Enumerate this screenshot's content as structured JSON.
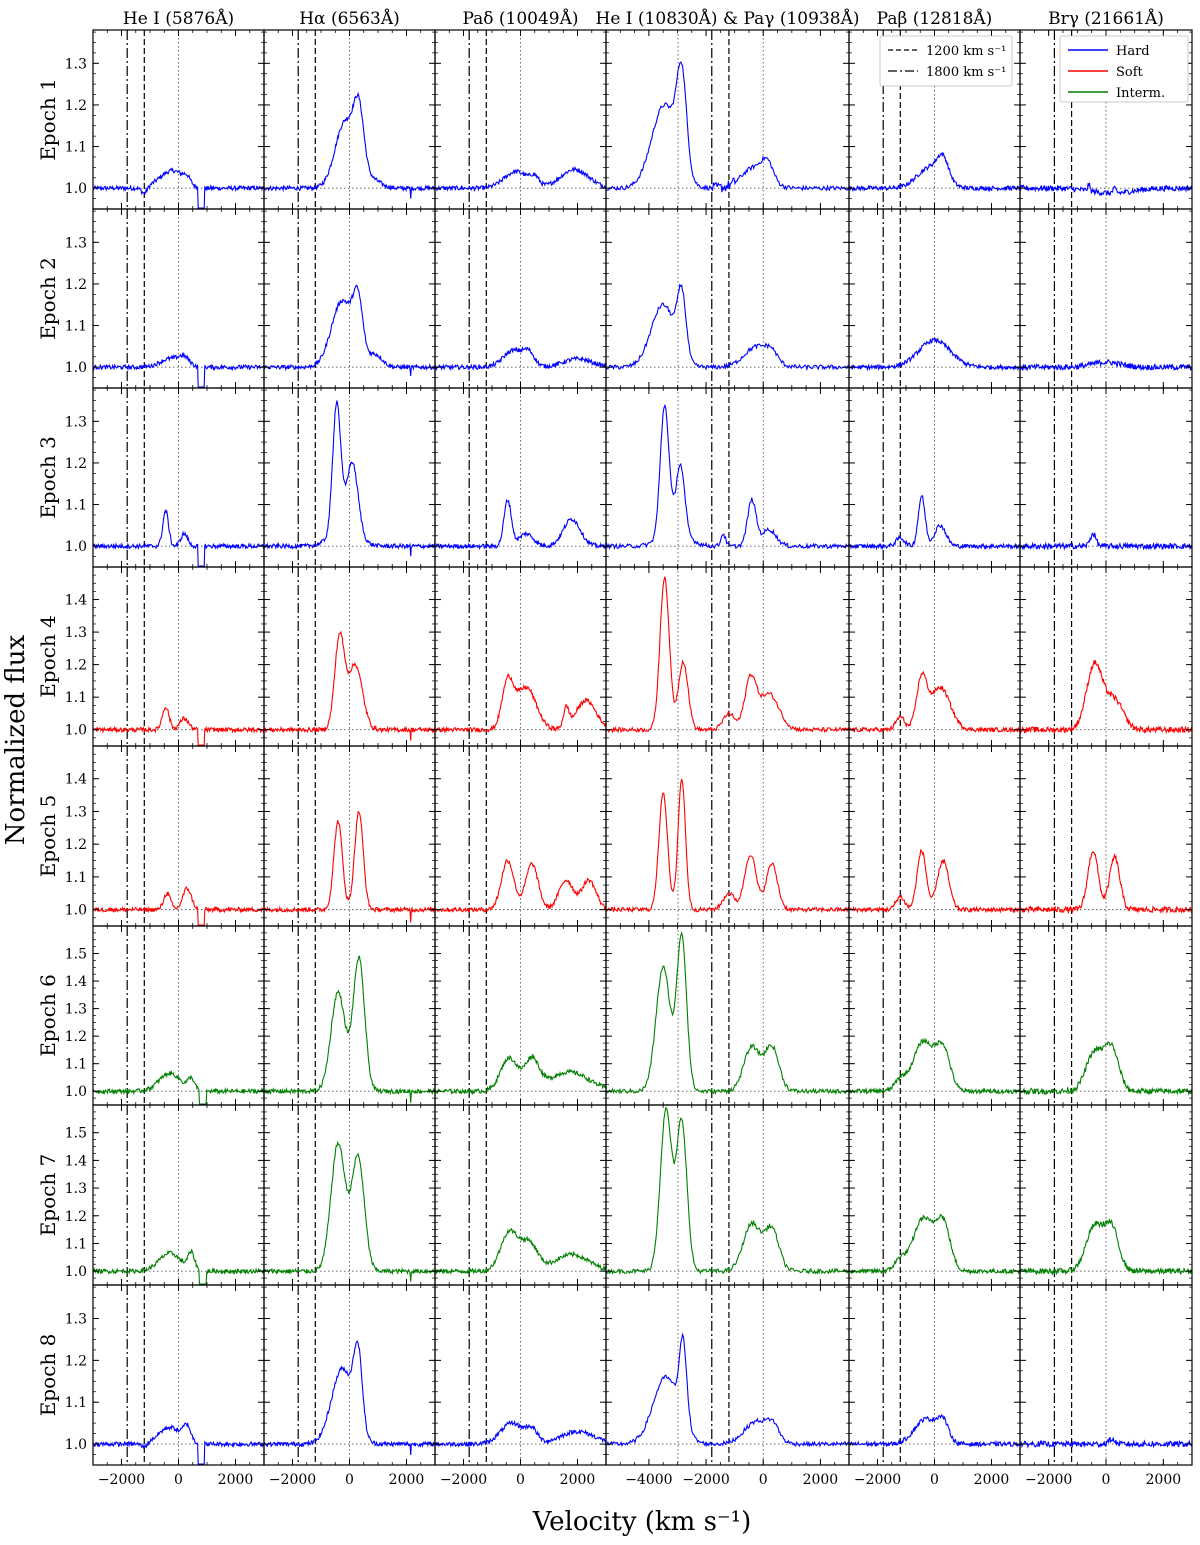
{
  "chart_data": {
    "type": "line",
    "xlabel": "Velocity (km s⁻¹)",
    "ylabel": "Normalized flux",
    "x_unit": "km s^-1",
    "columns": [
      {
        "label": "He I (5876Å)",
        "xlim": [
          -3000,
          3000
        ],
        "xticks": [
          -2000,
          0,
          2000
        ]
      },
      {
        "label": "Hα (6563Å)",
        "xlim": [
          -3000,
          3000
        ],
        "xticks": [
          -2000,
          0,
          2000
        ]
      },
      {
        "label": "Paδ (10049Å)",
        "xlim": [
          -3000,
          3000
        ],
        "xticks": [
          -2000,
          0,
          2000
        ]
      },
      {
        "label": "He I (10830Å) & Paγ (10938Å)",
        "xlim": [
          -5500,
          3000
        ],
        "xticks": [
          -4000,
          -2000,
          0,
          2000
        ]
      },
      {
        "label": "Paβ (12818Å)",
        "xlim": [
          -3000,
          3000
        ],
        "xticks": [
          -2000,
          0,
          2000
        ]
      },
      {
        "label": "Brγ (21661Å)",
        "xlim": [
          -3000,
          3000
        ],
        "xticks": [
          -2000,
          0,
          2000
        ]
      }
    ],
    "rows": [
      {
        "label": "Epoch 1",
        "state": "Hard",
        "ylim": [
          0.95,
          1.38
        ],
        "yticks": [
          "1.0",
          "1.1",
          "1.2",
          "1.3"
        ]
      },
      {
        "label": "Epoch 2",
        "state": "Hard",
        "ylim": [
          0.95,
          1.38
        ],
        "yticks": [
          "1.0",
          "1.1",
          "1.2",
          "1.3"
        ]
      },
      {
        "label": "Epoch 3",
        "state": "Hard",
        "ylim": [
          0.95,
          1.38
        ],
        "yticks": [
          "1.0",
          "1.1",
          "1.2",
          "1.3"
        ]
      },
      {
        "label": "Epoch 4",
        "state": "Soft",
        "ylim": [
          0.95,
          1.5
        ],
        "yticks": [
          "1.0",
          "1.1",
          "1.2",
          "1.3",
          "1.4"
        ]
      },
      {
        "label": "Epoch 5",
        "state": "Soft",
        "ylim": [
          0.95,
          1.5
        ],
        "yticks": [
          "1.0",
          "1.1",
          "1.2",
          "1.3",
          "1.4"
        ]
      },
      {
        "label": "Epoch 6",
        "state": "Interm.",
        "ylim": [
          0.95,
          1.6
        ],
        "yticks": [
          "1.0",
          "1.1",
          "1.2",
          "1.3",
          "1.4",
          "1.5"
        ]
      },
      {
        "label": "Epoch 7",
        "state": "Interm.",
        "ylim": [
          0.95,
          1.6
        ],
        "yticks": [
          "1.0",
          "1.1",
          "1.2",
          "1.3",
          "1.4",
          "1.5"
        ]
      },
      {
        "label": "Epoch 8",
        "state": "Hard",
        "ylim": [
          0.95,
          1.38
        ],
        "yticks": [
          "1.0",
          "1.1",
          "1.2",
          "1.3"
        ]
      }
    ],
    "state_colors": {
      "Hard": "#0000ff",
      "Soft": "#ff0000",
      "Interm.": "#008000"
    },
    "legend_states": {
      "entries": [
        "Hard",
        "Soft",
        "Interm."
      ],
      "placement": "top-right of the Brγ column, Epoch 1 row"
    },
    "legend_lines": {
      "entries": [
        {
          "label": "1200 km s⁻¹",
          "style": "dashed"
        },
        {
          "label": "1800 km s⁻¹",
          "style": "dash-dot"
        }
      ],
      "placement": "top-right of the Paβ column, Epoch 1 row"
    },
    "reference_lines": {
      "dashed_velocity": -1200,
      "dashdot_velocity": -1800,
      "hei_pag_separation": -2980,
      "continuum": 1.0
    },
    "profiles": [
      [
        {
          "comps": [
            [
              -400,
              380,
              0.03
            ],
            [
              0,
              300,
              0.02
            ],
            [
              300,
              120,
              0.015
            ],
            [
              -1200,
              100,
              -0.015
            ]
          ],
          "abs": 800
        },
        {
          "comps": [
            [
              -150,
              350,
              0.16
            ],
            [
              330,
              180,
              0.15
            ],
            [
              800,
              300,
              0.02
            ]
          ],
          "spike": 2150
        },
        {
          "comps": [
            [
              -150,
              420,
              0.04
            ],
            [
              500,
              150,
              0.02
            ],
            [
              1900,
              500,
              0.045
            ]
          ]
        },
        {
          "comps": [
            [
              -3450,
              450,
              0.2
            ],
            [
              -2850,
              170,
              0.22
            ],
            [
              -300,
              450,
              0.05
            ],
            [
              150,
              200,
              0.04
            ]
          ],
          "noise_from": -1800
        },
        {
          "comps": [
            [
              -150,
              450,
              0.05
            ],
            [
              300,
              200,
              0.05
            ]
          ]
        },
        {
          "comps": [
            [
              -600,
              40,
              0.015
            ],
            [
              300,
              60,
              0.01
            ],
            [
              200,
              700,
              -0.012
            ]
          ]
        }
      ],
      [
        {
          "comps": [
            [
              -300,
              350,
              0.02
            ],
            [
              200,
              200,
              0.02
            ]
          ],
          "abs": 800
        },
        {
          "comps": [
            [
              -250,
              380,
              0.16
            ],
            [
              300,
              170,
              0.13
            ],
            [
              900,
              250,
              0.03
            ]
          ],
          "spike": 2150
        },
        {
          "comps": [
            [
              -250,
              350,
              0.04
            ],
            [
              300,
              200,
              0.03
            ],
            [
              2000,
              500,
              0.02
            ]
          ]
        },
        {
          "comps": [
            [
              -3500,
              420,
              0.15
            ],
            [
              -2850,
              150,
              0.15
            ],
            [
              -200,
              450,
              0.05
            ],
            [
              300,
              200,
              0.02
            ]
          ]
        },
        {
          "comps": [
            [
              0,
              550,
              0.065
            ]
          ]
        },
        {
          "comps": [
            [
              0,
              500,
              0.012
            ]
          ]
        }
      ],
      [
        {
          "comps": [
            [
              -450,
              100,
              0.085
            ],
            [
              200,
              120,
              0.03
            ]
          ],
          "abs": 800
        },
        {
          "comps": [
            [
              -450,
              140,
              0.31
            ],
            [
              100,
              200,
              0.17
            ],
            [
              -200,
              450,
              0.04
            ]
          ],
          "spike": 2150
        },
        {
          "comps": [
            [
              -450,
              130,
              0.11
            ],
            [
              200,
              250,
              0.03
            ],
            [
              1800,
              300,
              0.065
            ]
          ]
        },
        {
          "comps": [
            [
              -3450,
              150,
              0.31
            ],
            [
              -2900,
              150,
              0.16
            ],
            [
              -3100,
              450,
              0.04
            ],
            [
              -1400,
              80,
              0.03
            ],
            [
              -400,
              150,
              0.11
            ],
            [
              200,
              250,
              0.04
            ]
          ]
        },
        {
          "comps": [
            [
              -450,
              120,
              0.12
            ],
            [
              200,
              200,
              0.05
            ],
            [
              -1200,
              150,
              0.02
            ]
          ]
        },
        {
          "comps": [
            [
              -450,
              100,
              0.03
            ]
          ]
        }
      ],
      [
        {
          "comps": [
            [
              -450,
              120,
              0.07
            ],
            [
              200,
              150,
              0.035
            ]
          ],
          "abs": 800
        },
        {
          "comps": [
            [
              -350,
              170,
              0.28
            ],
            [
              200,
              250,
              0.2
            ]
          ],
          "spike": 2150
        },
        {
          "comps": [
            [
              -450,
              200,
              0.14
            ],
            [
              200,
              350,
              0.13
            ],
            [
              1600,
              100,
              0.06
            ],
            [
              2300,
              350,
              0.09
            ]
          ]
        },
        {
          "comps": [
            [
              -3450,
              160,
              0.47
            ],
            [
              -2800,
              170,
              0.21
            ],
            [
              -1200,
              200,
              0.05
            ],
            [
              -450,
              200,
              0.15
            ],
            [
              200,
              350,
              0.11
            ]
          ]
        },
        {
          "comps": [
            [
              -450,
              180,
              0.15
            ],
            [
              200,
              350,
              0.13
            ],
            [
              -1200,
              150,
              0.04
            ]
          ]
        },
        {
          "comps": [
            [
              -400,
              280,
              0.2
            ],
            [
              300,
              300,
              0.09
            ]
          ]
        }
      ],
      [
        {
          "comps": [
            [
              -400,
              120,
              0.05
            ],
            [
              300,
              150,
              0.065
            ]
          ],
          "abs": 800
        },
        {
          "comps": [
            [
              -400,
              150,
              0.27
            ],
            [
              330,
              150,
              0.3
            ]
          ],
          "spike": 2150
        },
        {
          "comps": [
            [
              -450,
              220,
              0.15
            ],
            [
              400,
              220,
              0.14
            ],
            [
              1600,
              250,
              0.09
            ],
            [
              2400,
              250,
              0.09
            ]
          ]
        },
        {
          "comps": [
            [
              -3500,
              150,
              0.36
            ],
            [
              -2850,
              130,
              0.4
            ],
            [
              -1200,
              200,
              0.05
            ],
            [
              -450,
              200,
              0.17
            ],
            [
              300,
              200,
              0.14
            ]
          ]
        },
        {
          "comps": [
            [
              -450,
              160,
              0.18
            ],
            [
              300,
              200,
              0.15
            ],
            [
              -1200,
              150,
              0.04
            ]
          ]
        },
        {
          "comps": [
            [
              -450,
              180,
              0.18
            ],
            [
              300,
              180,
              0.16
            ]
          ]
        }
      ],
      [
        {
          "comps": [
            [
              -300,
              380,
              0.065
            ],
            [
              450,
              120,
              0.04
            ]
          ],
          "abs": 850
        },
        {
          "comps": [
            [
              -400,
              250,
              0.36
            ],
            [
              330,
              200,
              0.48
            ]
          ],
          "spike": 2150
        },
        {
          "comps": [
            [
              -400,
              300,
              0.12
            ],
            [
              400,
              250,
              0.11
            ],
            [
              1700,
              700,
              0.07
            ]
          ]
        },
        {
          "comps": [
            [
              -3500,
              250,
              0.45
            ],
            [
              -2850,
              170,
              0.56
            ],
            [
              -400,
              280,
              0.16
            ],
            [
              300,
              250,
              0.16
            ]
          ]
        },
        {
          "comps": [
            [
              -400,
              350,
              0.18
            ],
            [
              300,
              250,
              0.15
            ],
            [
              -1200,
              200,
              0.04
            ]
          ]
        },
        {
          "comps": [
            [
              -400,
              300,
              0.14
            ],
            [
              200,
              250,
              0.15
            ]
          ]
        }
      ],
      [
        {
          "comps": [
            [
              -300,
              380,
              0.065
            ],
            [
              450,
              120,
              0.06
            ]
          ],
          "abs": 850
        },
        {
          "comps": [
            [
              -400,
              250,
              0.46
            ],
            [
              300,
              220,
              0.41
            ]
          ],
          "spike": 2150
        },
        {
          "comps": [
            [
              -400,
              300,
              0.14
            ],
            [
              300,
              300,
              0.1
            ],
            [
              1800,
              600,
              0.06
            ]
          ]
        },
        {
          "comps": [
            [
              -3400,
              200,
              0.58
            ],
            [
              -2850,
              180,
              0.54
            ],
            [
              -400,
              300,
              0.17
            ],
            [
              300,
              250,
              0.15
            ]
          ]
        },
        {
          "comps": [
            [
              -400,
              350,
              0.19
            ],
            [
              300,
              250,
              0.17
            ],
            [
              -1200,
              200,
              0.04
            ]
          ]
        },
        {
          "comps": [
            [
              -400,
              300,
              0.16
            ],
            [
              200,
              250,
              0.15
            ]
          ]
        }
      ],
      [
        {
          "comps": [
            [
              -300,
              400,
              0.04
            ],
            [
              300,
              130,
              0.035
            ],
            [
              -1200,
              100,
              -0.01
            ]
          ],
          "abs": 800
        },
        {
          "comps": [
            [
              -250,
              380,
              0.18
            ],
            [
              300,
              150,
              0.18
            ]
          ],
          "spike": 2150
        },
        {
          "comps": [
            [
              -300,
              400,
              0.05
            ],
            [
              400,
              200,
              0.03
            ],
            [
              2000,
              600,
              0.03
            ]
          ]
        },
        {
          "comps": [
            [
              -3400,
              450,
              0.16
            ],
            [
              -2800,
              130,
              0.19
            ],
            [
              -200,
              450,
              0.055
            ],
            [
              350,
              200,
              0.03
            ]
          ]
        },
        {
          "comps": [
            [
              -300,
              400,
              0.06
            ],
            [
              300,
              200,
              0.045
            ]
          ]
        },
        {
          "comps": [
            [
              200,
              100,
              0.012
            ]
          ]
        }
      ]
    ]
  }
}
